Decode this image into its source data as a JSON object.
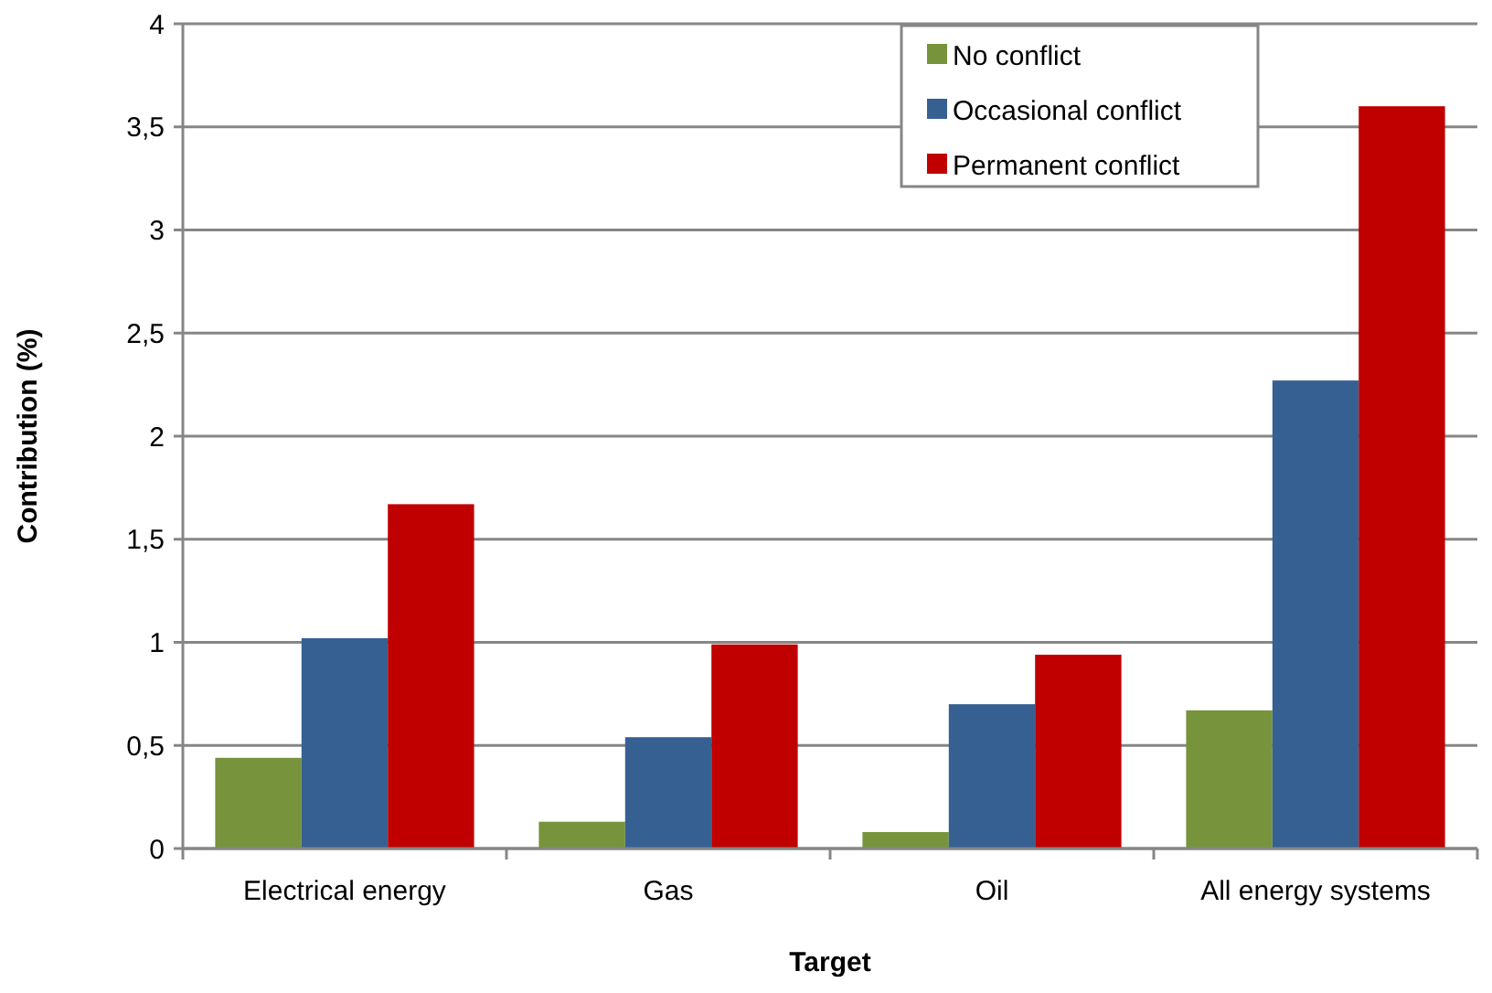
{
  "chart_data": {
    "type": "bar",
    "xlabel": "Target",
    "ylabel": "Contribution (%)",
    "categories": [
      "Electrical energy",
      "Gas",
      "Oil",
      "All energy systems"
    ],
    "series": [
      {
        "name": "No conflict",
        "color": "#77933c",
        "values": [
          0.44,
          0.13,
          0.08,
          0.67
        ]
      },
      {
        "name": "Occasional conflict",
        "color": "#376092",
        "values": [
          1.02,
          0.54,
          0.7,
          2.27
        ]
      },
      {
        "name": "Permanent conflict",
        "color": "#c00000",
        "values": [
          1.67,
          0.99,
          0.94,
          3.6
        ]
      }
    ],
    "ylim": [
      0,
      4
    ],
    "yticks": [
      0,
      {
        "value": 0.5,
        "label": "0,5"
      },
      1,
      {
        "value": 1.5,
        "label": "1,5"
      },
      2,
      {
        "value": 2.5,
        "label": "2,5"
      },
      3,
      {
        "value": 3.5,
        "label": "3,5"
      },
      4
    ],
    "grid": "y",
    "legend": "top right"
  }
}
